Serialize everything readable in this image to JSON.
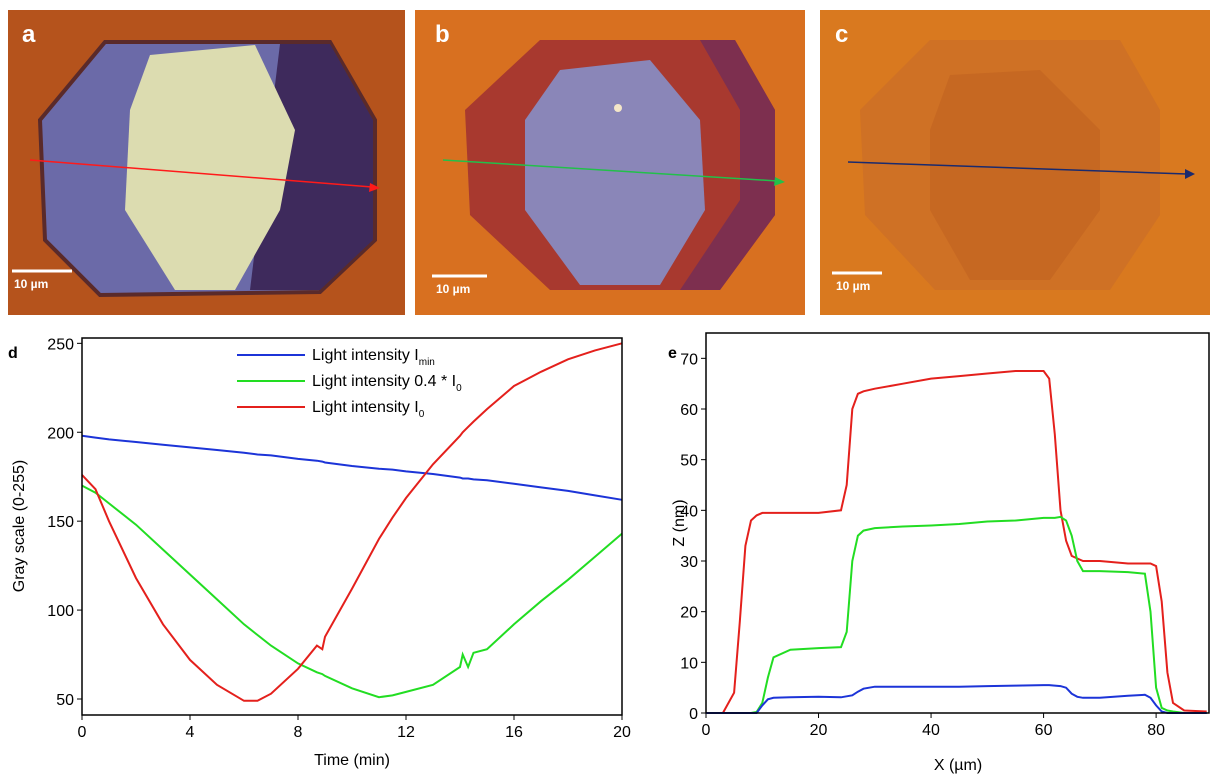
{
  "panels": [
    {
      "label": "a",
      "scale_bar": "10 µm"
    },
    {
      "label": "b",
      "scale_bar": "10 µm"
    },
    {
      "label": "c",
      "scale_bar": "10 µm"
    }
  ],
  "chart_data": [
    {
      "type": "line",
      "panel": "d",
      "x_label": "Time (min)",
      "y_label": "Gray scale (0-255)",
      "xlim": [
        0,
        20
      ],
      "ylim": [
        41,
        253
      ],
      "xticks": [
        0,
        4,
        8,
        12,
        16,
        20
      ],
      "yticks": [
        50,
        100,
        150,
        200,
        250
      ],
      "legend": "upper center",
      "x": [
        0,
        0.5,
        1,
        2,
        3,
        4,
        5,
        6,
        6.5,
        7,
        8,
        8.7,
        8.9,
        9,
        10,
        11,
        11.5,
        12,
        13,
        14,
        14.1,
        14.3,
        14.5,
        15,
        16,
        17,
        18,
        19,
        20
      ],
      "series": [
        {
          "name": "Light intensity I",
          "subscript": "min",
          "color": "#1c34d8",
          "values": [
            198,
            197,
            196,
            194.5,
            193,
            191.5,
            190,
            188.5,
            187.5,
            187,
            185,
            184,
            183.5,
            183,
            181,
            179.5,
            179,
            178,
            176.5,
            174.5,
            174,
            174,
            173.5,
            173,
            171,
            169,
            167,
            164.5,
            162
          ]
        },
        {
          "name": "Light intensity 0.4 * I",
          "subscript": "0",
          "color": "#22dd22",
          "values": [
            170,
            166,
            160,
            148,
            134,
            120,
            106,
            92,
            86,
            80,
            70,
            65,
            64,
            63,
            56,
            51,
            52,
            54,
            58,
            68,
            75,
            68,
            76,
            78,
            92,
            105,
            117,
            130,
            143
          ]
        },
        {
          "name": "Light intensity I",
          "subscript": "0",
          "color": "#e4201c",
          "values": [
            176,
            168,
            150,
            118,
            92,
            72,
            58,
            49,
            49,
            53,
            67,
            80,
            78,
            85,
            112,
            140,
            152,
            163,
            182,
            198,
            200,
            203,
            206,
            213,
            226,
            234,
            241,
            246,
            250
          ]
        }
      ]
    },
    {
      "type": "line",
      "panel": "e",
      "x_label": "X (µm)",
      "y_label": "Z (nm)",
      "xlim": [
        0,
        89.4
      ],
      "ylim": [
        0,
        75
      ],
      "xticks": [
        0,
        20,
        40,
        60,
        80
      ],
      "yticks": [
        0,
        10,
        20,
        30,
        40,
        50,
        60,
        70
      ],
      "x": [
        0,
        3,
        5,
        6,
        7,
        8,
        9,
        10,
        11,
        12,
        15,
        20,
        24,
        25,
        26,
        27,
        28,
        30,
        35,
        40,
        45,
        50,
        55,
        60,
        61,
        62,
        63,
        64,
        65,
        66,
        67,
        70,
        75,
        78,
        79,
        80,
        81,
        82,
        83,
        85,
        89
      ],
      "series": [
        {
          "color": "#e4201c",
          "values": [
            0,
            0,
            4,
            18,
            33,
            38,
            39,
            39.5,
            39.5,
            39.5,
            39.5,
            39.5,
            40,
            45,
            60,
            63,
            63.5,
            64,
            65,
            66,
            66.5,
            67,
            67.5,
            67.5,
            66,
            55,
            40,
            34,
            31,
            30.5,
            30,
            30,
            29.5,
            29.5,
            29.5,
            29,
            22,
            8,
            2,
            0.5,
            0.3
          ]
        },
        {
          "color": "#22dd22",
          "values": [
            0,
            0,
            0,
            0,
            0,
            0,
            0.2,
            2,
            7,
            11,
            12.5,
            12.8,
            13,
            16,
            30,
            35,
            36,
            36.5,
            36.8,
            37,
            37.3,
            37.8,
            38,
            38.5,
            38.5,
            38.5,
            38.7,
            38,
            35,
            30,
            28,
            28,
            27.8,
            27.5,
            20,
            5,
            1,
            0.5,
            0.3,
            0,
            0
          ]
        },
        {
          "color": "#1c34d8",
          "values": [
            0,
            0,
            0,
            0,
            0,
            0,
            0,
            1.5,
            2.7,
            3,
            3.1,
            3.2,
            3.1,
            3.3,
            3.5,
            4.2,
            4.8,
            5.2,
            5.2,
            5.2,
            5.2,
            5.3,
            5.4,
            5.5,
            5.5,
            5.4,
            5.3,
            5,
            3.8,
            3.2,
            3,
            3,
            3.4,
            3.6,
            3,
            1.5,
            0.3,
            0,
            0,
            0,
            0
          ]
        }
      ]
    }
  ]
}
